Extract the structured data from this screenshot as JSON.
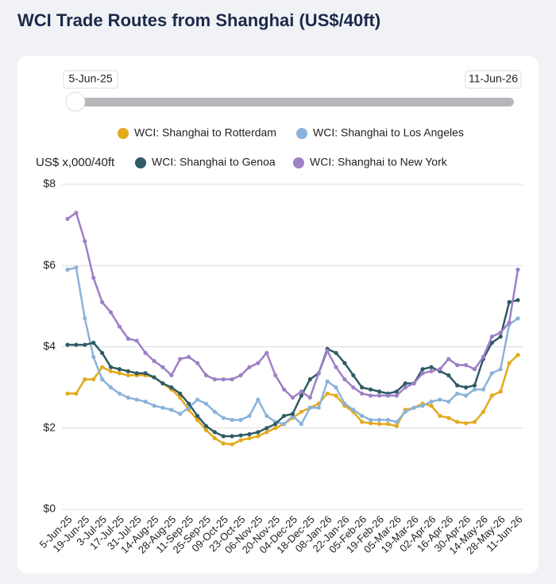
{
  "slider": {
    "start": "5-Jun-25",
    "end": "11-Jun-26"
  },
  "chart_data": {
    "type": "line",
    "title": "WCI Trade Routes from Shanghai (US$/40ft)",
    "y_label": "US$ x,000/40ft",
    "categories": [
      "5-Jun-25",
      null,
      "19-Jun-25",
      null,
      "3-Jul-25",
      null,
      "17-Jul-25",
      null,
      "31-Jul-25",
      null,
      "14-Aug-25",
      null,
      "28-Aug-25",
      null,
      "11-Sep-25",
      null,
      "25-Sep-25",
      null,
      "09-Oct-25",
      null,
      "23-Oct-25",
      null,
      "06-Nov-25",
      null,
      "20-Nov-25",
      null,
      "04-Dec-25",
      null,
      "18-Dec-25",
      null,
      "08-Jan-26",
      null,
      "22-Jan-26",
      null,
      "05-Feb-26",
      null,
      "19-Feb-26",
      null,
      "05-Mar-26",
      null,
      "19-Mar-26",
      null,
      "02-Apr-26",
      null,
      "16-Apr-26",
      null,
      "30-Apr-26",
      null,
      "14-May-26",
      null,
      "28-May-26",
      null,
      "11-Jun-26"
    ],
    "series": [
      {
        "name": "WCI: Shanghai to Rotterdam",
        "color": "#e3aa1e",
        "values": [
          2.85,
          2.85,
          3.2,
          3.2,
          3.5,
          3.4,
          3.35,
          3.3,
          3.3,
          3.3,
          3.25,
          3.1,
          2.95,
          2.75,
          2.45,
          2.2,
          1.95,
          1.75,
          1.62,
          1.6,
          1.7,
          1.75,
          1.8,
          1.9,
          2.0,
          2.1,
          2.25,
          2.4,
          2.5,
          2.6,
          2.85,
          2.8,
          2.55,
          2.4,
          2.15,
          2.12,
          2.1,
          2.1,
          2.05,
          2.45,
          2.5,
          2.6,
          2.55,
          2.3,
          2.25,
          2.15,
          2.12,
          2.15,
          2.4,
          2.8,
          2.9,
          3.6,
          3.8
        ]
      },
      {
        "name": "WCI: Shanghai to Los Angeles",
        "color": "#8ab3da",
        "values": [
          5.9,
          5.95,
          4.7,
          3.75,
          3.2,
          3.0,
          2.85,
          2.75,
          2.7,
          2.65,
          2.55,
          2.5,
          2.45,
          2.35,
          2.5,
          2.7,
          2.6,
          2.4,
          2.25,
          2.2,
          2.2,
          2.3,
          2.7,
          2.3,
          2.15,
          2.1,
          2.3,
          2.1,
          2.5,
          2.5,
          3.15,
          3.0,
          2.6,
          2.45,
          2.3,
          2.2,
          2.2,
          2.2,
          2.15,
          2.4,
          2.5,
          2.55,
          2.65,
          2.7,
          2.65,
          2.85,
          2.8,
          2.95,
          2.95,
          3.35,
          3.45,
          4.55,
          4.7
        ]
      },
      {
        "name": "WCI: Shanghai to Genoa",
        "color": "#2f5b64",
        "values": [
          4.05,
          4.05,
          4.05,
          4.1,
          3.85,
          3.5,
          3.45,
          3.4,
          3.35,
          3.35,
          3.25,
          3.1,
          3.0,
          2.85,
          2.6,
          2.3,
          2.05,
          1.9,
          1.8,
          1.8,
          1.82,
          1.85,
          1.9,
          2.0,
          2.1,
          2.3,
          2.35,
          2.8,
          3.2,
          3.35,
          3.95,
          3.85,
          3.6,
          3.3,
          3.0,
          2.95,
          2.9,
          2.85,
          2.9,
          3.1,
          3.1,
          3.45,
          3.5,
          3.4,
          3.3,
          3.05,
          3.0,
          3.05,
          3.7,
          4.1,
          4.25,
          5.1,
          5.15
        ]
      },
      {
        "name": "WCI: Shanghai to New York",
        "color": "#9d80c6",
        "values": [
          7.15,
          7.3,
          6.6,
          5.7,
          5.1,
          4.85,
          4.5,
          4.2,
          4.15,
          3.85,
          3.65,
          3.5,
          3.3,
          3.7,
          3.75,
          3.6,
          3.3,
          3.2,
          3.2,
          3.2,
          3.3,
          3.5,
          3.6,
          3.85,
          3.3,
          2.95,
          2.75,
          2.9,
          2.75,
          3.35,
          3.9,
          3.5,
          3.2,
          3.0,
          2.85,
          2.8,
          2.8,
          2.8,
          2.8,
          3.0,
          3.1,
          3.35,
          3.4,
          3.45,
          3.7,
          3.55,
          3.55,
          3.45,
          3.75,
          4.25,
          4.35,
          4.6,
          5.9
        ]
      }
    ],
    "ylim": [
      0,
      8
    ],
    "yticks": [
      {
        "value": 0,
        "label": "$0"
      },
      {
        "value": 2,
        "label": "$2"
      },
      {
        "value": 4,
        "label": "$4"
      },
      {
        "value": 6,
        "label": "$6"
      },
      {
        "value": 8,
        "label": "$8"
      }
    ],
    "grid": true
  }
}
